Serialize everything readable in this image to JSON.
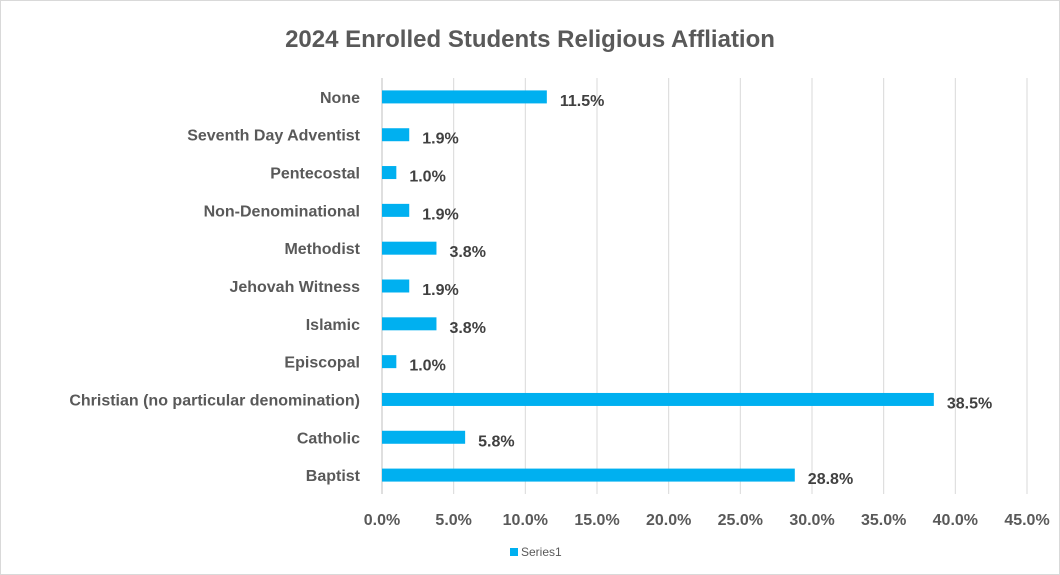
{
  "chart_data": {
    "type": "bar",
    "orientation": "horizontal",
    "title": "2024 Enrolled Students Religious Affliation",
    "categories": [
      "None",
      "Seventh Day Adventist",
      "Pentecostal",
      "Non-Denominational",
      "Methodist",
      "Jehovah Witness",
      "Islamic",
      "Episcopal",
      "Christian (no particular denomination)",
      "Catholic",
      "Baptist"
    ],
    "series": [
      {
        "name": "Series1",
        "color": "#00b0f0",
        "values": [
          11.5,
          1.9,
          1.0,
          1.9,
          3.8,
          1.9,
          3.8,
          1.0,
          38.5,
          5.8,
          28.8
        ],
        "labels": [
          "11.5%",
          "1.9%",
          "1.0%",
          "1.9%",
          "3.8%",
          "1.9%",
          "3.8%",
          "1.0%",
          "38.5%",
          "5.8%",
          "28.8%"
        ]
      }
    ],
    "xlim": [
      0,
      45
    ],
    "xticks": [
      "0.0%",
      "5.0%",
      "10.0%",
      "15.0%",
      "20.0%",
      "25.0%",
      "30.0%",
      "35.0%",
      "40.0%",
      "45.0%"
    ],
    "grid": true,
    "legend_position": "bottom"
  }
}
